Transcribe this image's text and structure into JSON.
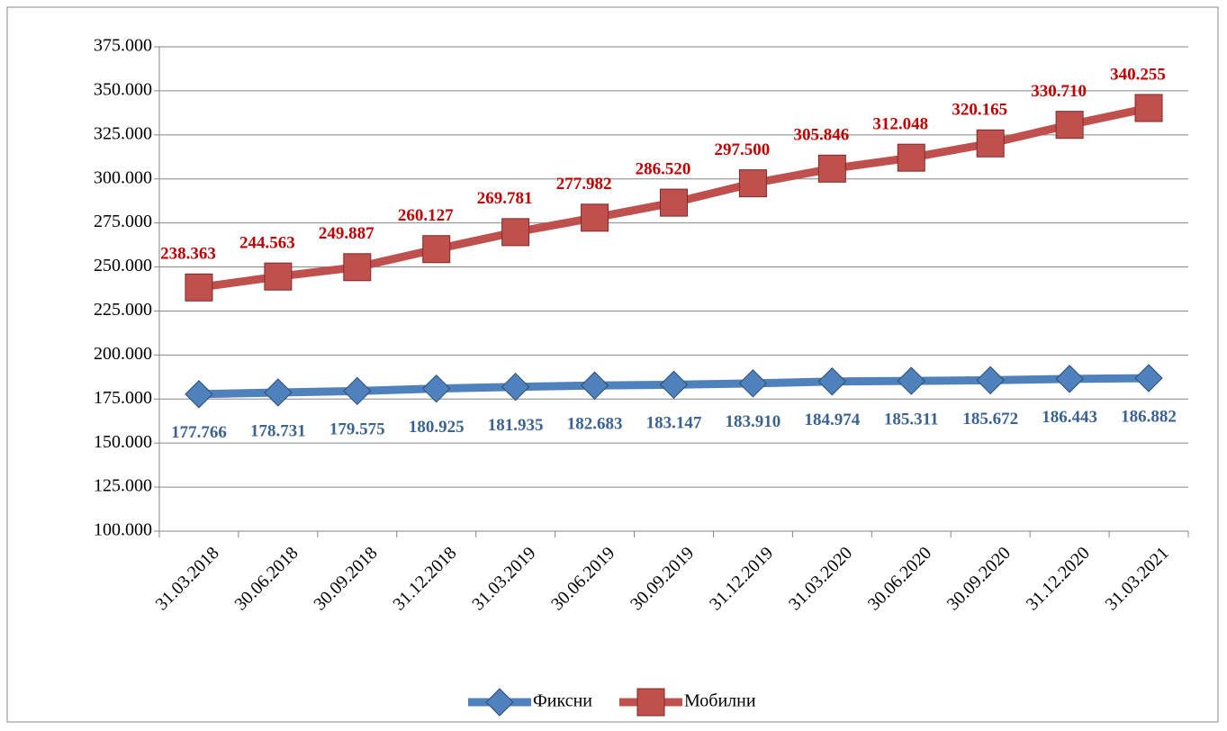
{
  "chart_data": {
    "type": "line",
    "categories": [
      "31.03.2018",
      "30.06.2018",
      "30.09.2018",
      "31.12.2018",
      "31.03.2019",
      "30.06.2019",
      "30.09.2019",
      "31.12.2019",
      "31.03.2020",
      "30.06.2020",
      "30.09.2020",
      "31.12.2020",
      "31.03.2021"
    ],
    "series": [
      {
        "name": "Фиксни",
        "color": "#4f81bd",
        "label_color": "#3b6392",
        "marker": "diamond",
        "label_position": "below",
        "values": [
          177766,
          178731,
          179575,
          180925,
          181935,
          182683,
          183147,
          183910,
          184974,
          185311,
          185672,
          186443,
          186882
        ],
        "value_labels": [
          "177.766",
          "178.731",
          "179.575",
          "180.925",
          "181.935",
          "182.683",
          "183.147",
          "183.910",
          "184.974",
          "185.311",
          "185.672",
          "186.443",
          "186.882"
        ]
      },
      {
        "name": "Мобилни",
        "color": "#c0504d",
        "label_color": "#c00000",
        "marker": "square",
        "label_position": "above",
        "values": [
          238363,
          244563,
          249887,
          260127,
          269781,
          277982,
          286520,
          297500,
          305846,
          312048,
          320165,
          330710,
          340255
        ],
        "value_labels": [
          "238.363",
          "244.563",
          "249.887",
          "260.127",
          "269.781",
          "277.982",
          "286.520",
          "297.500",
          "305.846",
          "312.048",
          "320.165",
          "330.710",
          "340.255"
        ]
      }
    ],
    "ylim": [
      100000,
      375000
    ],
    "yticks": [
      {
        "value": 100000,
        "label": "100.000"
      },
      {
        "value": 125000,
        "label": "125.000"
      },
      {
        "value": 150000,
        "label": "150.000"
      },
      {
        "value": 175000,
        "label": "175.000"
      },
      {
        "value": 200000,
        "label": "200.000"
      },
      {
        "value": 225000,
        "label": "225.000"
      },
      {
        "value": 250000,
        "label": "250.000"
      },
      {
        "value": 275000,
        "label": "275.000"
      },
      {
        "value": 300000,
        "label": "300.000"
      },
      {
        "value": 325000,
        "label": "325.000"
      },
      {
        "value": 350000,
        "label": "350.000"
      },
      {
        "value": 375000,
        "label": "375.000"
      }
    ],
    "grid": true,
    "legend": "bottom"
  }
}
